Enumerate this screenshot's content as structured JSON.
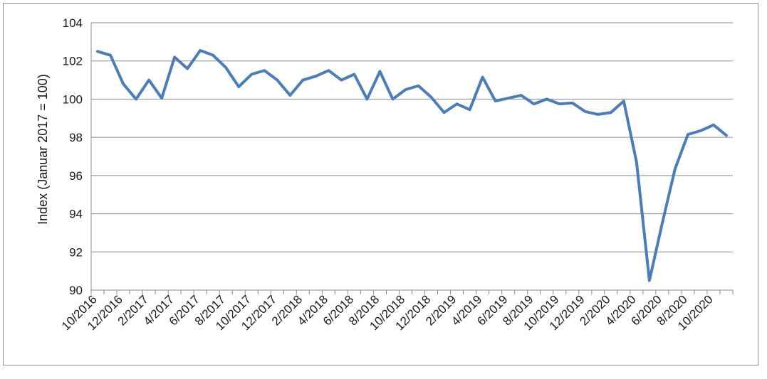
{
  "chart_data": {
    "type": "line",
    "title": "",
    "xlabel": "",
    "ylabel": "Index (Januar 2017 = 100)",
    "ylim": [
      90,
      104
    ],
    "yticks": [
      90,
      92,
      94,
      96,
      98,
      100,
      102,
      104
    ],
    "grid": "horizontal",
    "legend": "none",
    "line_color": "#4a7ebb",
    "grid_color": "#8c8c8c",
    "x_tick_labels": [
      "10/2016",
      "12/2016",
      "2/2017",
      "4/2017",
      "6/2017",
      "8/2017",
      "10/2017",
      "12/2017",
      "2/2018",
      "4/2018",
      "6/2018",
      "8/2018",
      "10/2018",
      "12/2018",
      "2/2019",
      "4/2019",
      "6/2019",
      "8/2019",
      "10/2019",
      "12/2019",
      "2/2020",
      "4/2020",
      "6/2020",
      "8/2020",
      "10/2020"
    ],
    "x": [
      "10/2016",
      "11/2016",
      "12/2016",
      "1/2017",
      "2/2017",
      "3/2017",
      "4/2017",
      "5/2017",
      "6/2017",
      "7/2017",
      "8/2017",
      "9/2017",
      "10/2017",
      "11/2017",
      "12/2017",
      "1/2018",
      "2/2018",
      "3/2018",
      "4/2018",
      "5/2018",
      "6/2018",
      "7/2018",
      "8/2018",
      "9/2018",
      "10/2018",
      "11/2018",
      "12/2018",
      "1/2019",
      "2/2019",
      "3/2019",
      "4/2019",
      "5/2019",
      "6/2019",
      "7/2019",
      "8/2019",
      "9/2019",
      "10/2019",
      "11/2019",
      "12/2019",
      "1/2020",
      "2/2020",
      "3/2020",
      "4/2020",
      "5/2020",
      "6/2020",
      "7/2020",
      "8/2020",
      "9/2020",
      "10/2020",
      "11/2020"
    ],
    "series": [
      {
        "values": [
          102.5,
          102.3,
          100.8,
          100.0,
          101.0,
          100.05,
          102.2,
          101.6,
          102.55,
          102.3,
          101.65,
          100.65,
          101.3,
          101.5,
          101.0,
          100.2,
          101.0,
          101.2,
          101.5,
          101.0,
          101.3,
          100.0,
          101.45,
          100.0,
          100.5,
          100.7,
          100.1,
          99.3,
          99.75,
          99.45,
          101.15,
          99.9,
          100.05,
          100.2,
          99.75,
          100.0,
          99.75,
          99.8,
          99.35,
          99.2,
          99.3,
          99.9,
          96.7,
          90.5,
          93.5,
          96.35,
          98.15,
          98.35,
          98.65,
          98.1
        ]
      }
    ]
  }
}
